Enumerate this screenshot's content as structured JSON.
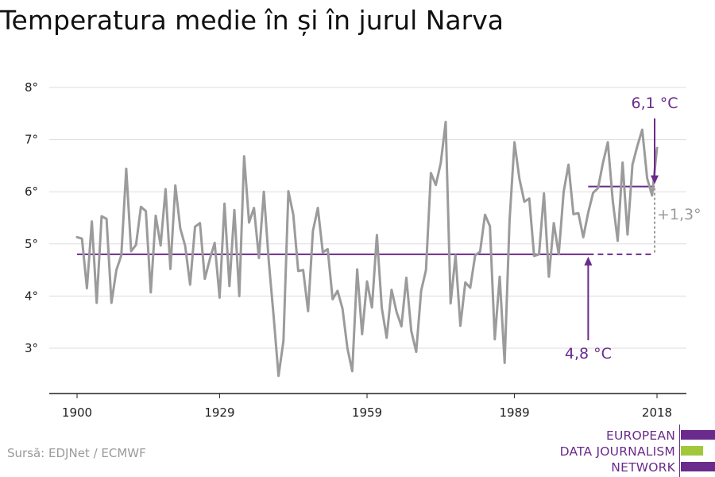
{
  "title": "Temperatura medie în și în jurul Narva",
  "source": "Sursă: EDJNet / ECMWF",
  "logo": {
    "lines": [
      "EUROPEAN",
      "DATA JOURNALISM",
      "NETWORK"
    ]
  },
  "colors": {
    "series": "#9b9b9b",
    "accent": "#6a2b8c",
    "logo_green": "#a2c83a",
    "grid": "#dddddd",
    "delta": "#9b9b9b"
  },
  "chart_data": {
    "type": "line",
    "title": "Temperatura medie în și în jurul Narva",
    "xlabel": "",
    "ylabel": "",
    "x_ticks": [
      1900,
      1929,
      1959,
      1989,
      2018
    ],
    "y_ticks": [
      3,
      4,
      5,
      6,
      7,
      8
    ],
    "y_tick_labels": [
      "3°",
      "4°",
      "5°",
      "6°",
      "7°",
      "8°"
    ],
    "xlim": [
      1900,
      2018
    ],
    "ylim": [
      2.0,
      8.4
    ],
    "grid": "horizontal",
    "x": [
      1900,
      1901,
      1902,
      1903,
      1904,
      1905,
      1906,
      1907,
      1908,
      1909,
      1910,
      1911,
      1912,
      1913,
      1914,
      1915,
      1916,
      1917,
      1918,
      1919,
      1920,
      1921,
      1922,
      1923,
      1924,
      1925,
      1926,
      1927,
      1928,
      1929,
      1930,
      1931,
      1932,
      1933,
      1934,
      1935,
      1936,
      1937,
      1938,
      1939,
      1940,
      1941,
      1942,
      1943,
      1944,
      1945,
      1946,
      1947,
      1948,
      1949,
      1950,
      1951,
      1952,
      1953,
      1954,
      1955,
      1956,
      1957,
      1958,
      1959,
      1960,
      1961,
      1962,
      1963,
      1964,
      1965,
      1966,
      1967,
      1968,
      1969,
      1970,
      1971,
      1972,
      1973,
      1974,
      1975,
      1976,
      1977,
      1978,
      1979,
      1980,
      1981,
      1982,
      1983,
      1984,
      1985,
      1986,
      1987,
      1988,
      1989,
      1990,
      1991,
      1992,
      1993,
      1994,
      1995,
      1996,
      1997,
      1998,
      1999,
      2000,
      2001,
      2002,
      2003,
      2004,
      2005,
      2006,
      2007,
      2008,
      2009,
      2010,
      2011,
      2012,
      2013,
      2014,
      2015,
      2016,
      2017,
      2018
    ],
    "series": [
      {
        "values": [
          5.13,
          5.1,
          4.15,
          5.43,
          3.87,
          5.53,
          5.48,
          3.87,
          4.5,
          4.78,
          6.44,
          4.86,
          4.98,
          5.71,
          5.63,
          4.07,
          5.54,
          4.97,
          6.05,
          4.52,
          6.12,
          5.3,
          4.96,
          4.22,
          5.33,
          5.4,
          4.33,
          4.7,
          5.02,
          3.97,
          5.77,
          4.19,
          5.65,
          4.0,
          6.68,
          5.41,
          5.69,
          4.73,
          6.0,
          4.67,
          3.6,
          2.47,
          3.14,
          6.01,
          5.56,
          4.48,
          4.5,
          3.71,
          5.25,
          5.69,
          4.84,
          4.9,
          3.94,
          4.1,
          3.76,
          3.0,
          2.56,
          4.51,
          3.27,
          4.28,
          3.78,
          5.17,
          3.77,
          3.2,
          4.12,
          3.7,
          3.42,
          4.35,
          3.33,
          2.93,
          4.1,
          4.5,
          6.36,
          6.13,
          6.55,
          7.34,
          3.86,
          4.78,
          3.43,
          4.26,
          4.16,
          4.78,
          4.85,
          5.56,
          5.34,
          3.17,
          4.37,
          2.72,
          5.45,
          6.95,
          6.25,
          5.81,
          5.87,
          4.77,
          4.8,
          5.97,
          4.37,
          5.4,
          4.8,
          6.0,
          6.52,
          5.57,
          5.59,
          5.13,
          5.6,
          5.98,
          6.07,
          6.55,
          6.95,
          5.83,
          5.06,
          6.56,
          5.18,
          6.52,
          6.88,
          7.19,
          6.26,
          5.93,
          6.84
        ]
      }
    ],
    "reference_lines": [
      {
        "value": 4.8,
        "x_start": 1900,
        "x_end": 2018,
        "solid_until": 2004,
        "label": "4,8 °C"
      },
      {
        "value": 6.1,
        "x_start": 2004,
        "x_end": 2018,
        "label": "6,1 °C"
      }
    ],
    "annotations": {
      "low_label": "4,8 °C",
      "high_label": "6,1 °C",
      "delta_label": "+1,3°"
    }
  }
}
